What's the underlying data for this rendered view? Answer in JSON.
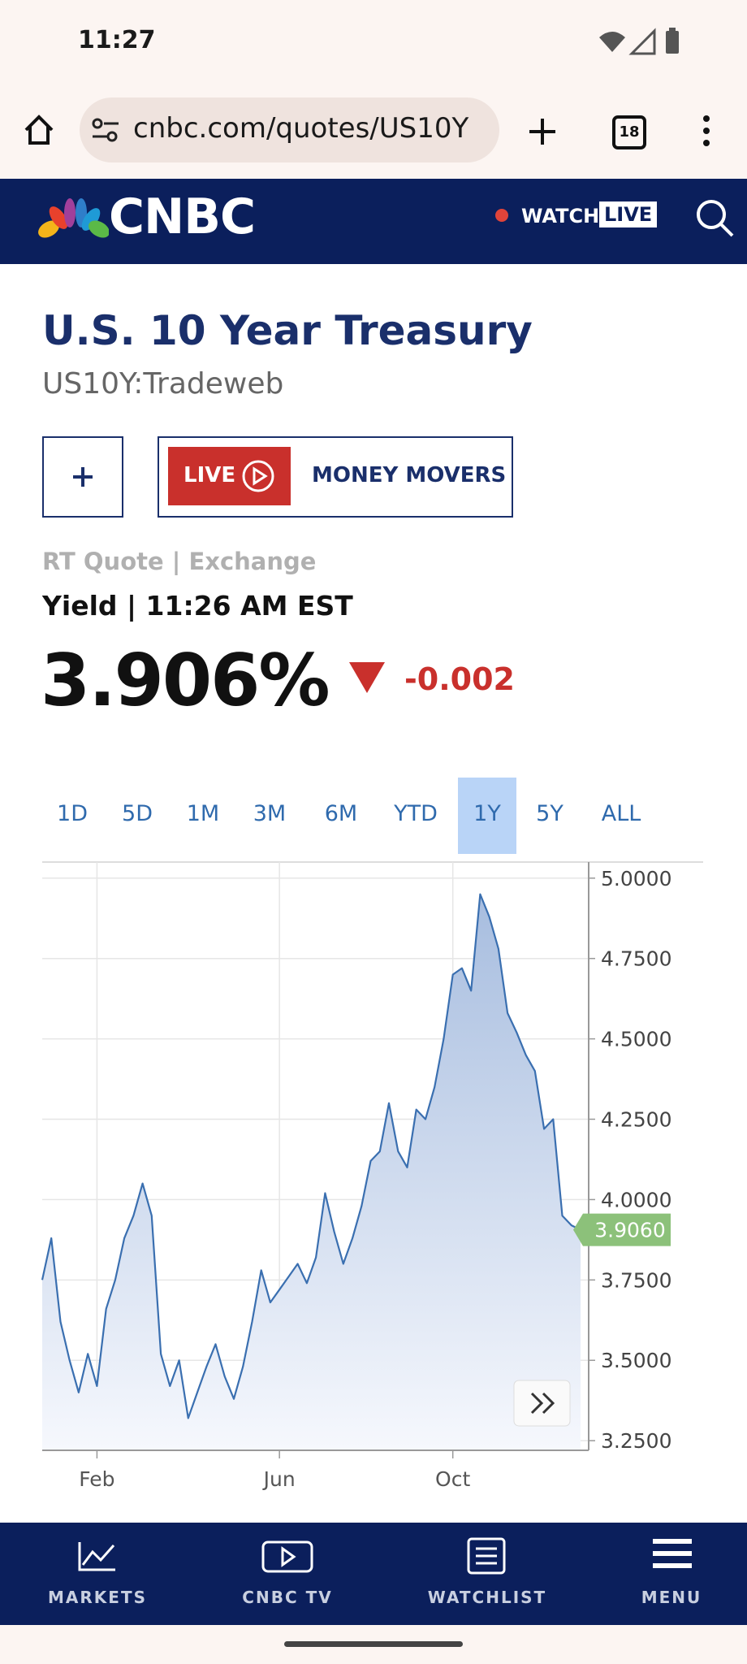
{
  "status_bar": {
    "time": "11:27"
  },
  "browser": {
    "url": "cnbc.com/quotes/US10Y",
    "tab_count": "18"
  },
  "header": {
    "logo": "CNBC",
    "watch": "WATCH",
    "live": "LIVE"
  },
  "quote": {
    "title": "U.S. 10 Year Treasury",
    "symbol": "US10Y:Tradeweb",
    "live_button": "LIVE",
    "show_button": "MONEY MOVERS",
    "source": "RT Quote | Exchange",
    "time_label": "Yield | 11:26 AM EST",
    "price": "3.906%",
    "change": "-0.002"
  },
  "ranges": {
    "options": [
      "1D",
      "5D",
      "1M",
      "3M",
      "6M",
      "YTD",
      "1Y",
      "5Y",
      "ALL"
    ],
    "selected": 6
  },
  "chart_data": {
    "type": "area",
    "color": "#3a6fb0",
    "grid": true,
    "categories": [
      null,
      null,
      null,
      null,
      null,
      null,
      "Feb",
      null,
      null,
      null,
      null,
      null,
      null,
      null,
      null,
      null,
      null,
      null,
      null,
      null,
      null,
      null,
      null,
      null,
      null,
      null,
      "Jun",
      null,
      null,
      null,
      null,
      null,
      null,
      null,
      null,
      null,
      null,
      null,
      null,
      null,
      null,
      null,
      null,
      null,
      null,
      "Oct",
      null,
      null,
      null,
      null,
      null,
      null,
      null,
      null,
      null,
      null,
      null,
      null,
      null,
      null
    ],
    "values": [
      3.75,
      3.88,
      3.62,
      3.5,
      3.4,
      3.52,
      3.42,
      3.66,
      3.75,
      3.88,
      3.95,
      4.05,
      3.95,
      3.52,
      3.42,
      3.5,
      3.32,
      3.4,
      3.48,
      3.55,
      3.45,
      3.38,
      3.48,
      3.62,
      3.78,
      3.68,
      3.72,
      3.76,
      3.8,
      3.74,
      3.82,
      4.02,
      3.9,
      3.8,
      3.88,
      3.98,
      4.12,
      4.15,
      4.3,
      4.15,
      4.1,
      4.28,
      4.25,
      4.35,
      4.5,
      4.7,
      4.72,
      4.65,
      4.95,
      4.88,
      4.78,
      4.58,
      4.52,
      4.45,
      4.4,
      4.22,
      4.25,
      3.95,
      3.92,
      3.906
    ],
    "value_labels": [
      null,
      null,
      null,
      null,
      null,
      null,
      null,
      null,
      null,
      null,
      null,
      null,
      null,
      null,
      null,
      null,
      null,
      null,
      null,
      null,
      null,
      null,
      null,
      null,
      null,
      null,
      null,
      null,
      null,
      null,
      null,
      null,
      null,
      null,
      null,
      null,
      null,
      null,
      null,
      null,
      null,
      null,
      null,
      null,
      null,
      null,
      null,
      null,
      null,
      null,
      null,
      null,
      null,
      null,
      null,
      null,
      null,
      null,
      null,
      "3.9060"
    ],
    "ylim": [
      3.22,
      5.05
    ],
    "yticks": [
      {
        "value": 3.25,
        "label": "3.2500"
      },
      {
        "value": 3.5,
        "label": "3.5000"
      },
      {
        "value": 3.75,
        "label": "3.7500"
      },
      {
        "value": 4,
        "label": "4.0000"
      },
      {
        "value": 4.25,
        "label": "4.2500"
      },
      {
        "value": 4.5,
        "label": "4.5000"
      },
      {
        "value": 4.75,
        "label": "4.7500"
      },
      {
        "value": 5,
        "label": "5.0000"
      }
    ]
  },
  "bottom_nav": [
    "MARKETS",
    "CNBC TV",
    "WATCHLIST",
    "MENU"
  ]
}
